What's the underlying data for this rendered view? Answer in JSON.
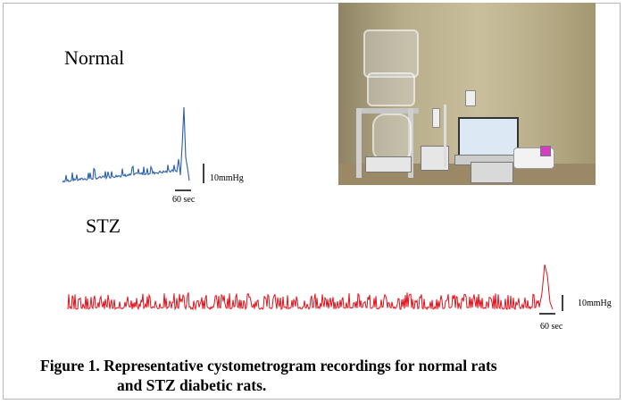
{
  "figure": {
    "normal_label": "Normal",
    "stz_label": "STZ",
    "normal_scale_y": "10mmHg",
    "normal_scale_x": "60 sec",
    "stz_scale_y": "10mmHg",
    "stz_scale_x": "60 sec",
    "caption_line1": "Figure 1.  Representative cystometrogram recordings for normal rats",
    "caption_line2": "and STZ diabetic rats.",
    "colors": {
      "normal_trace": "#2b5fa8",
      "stz_trace": "#e0121c"
    }
  }
}
